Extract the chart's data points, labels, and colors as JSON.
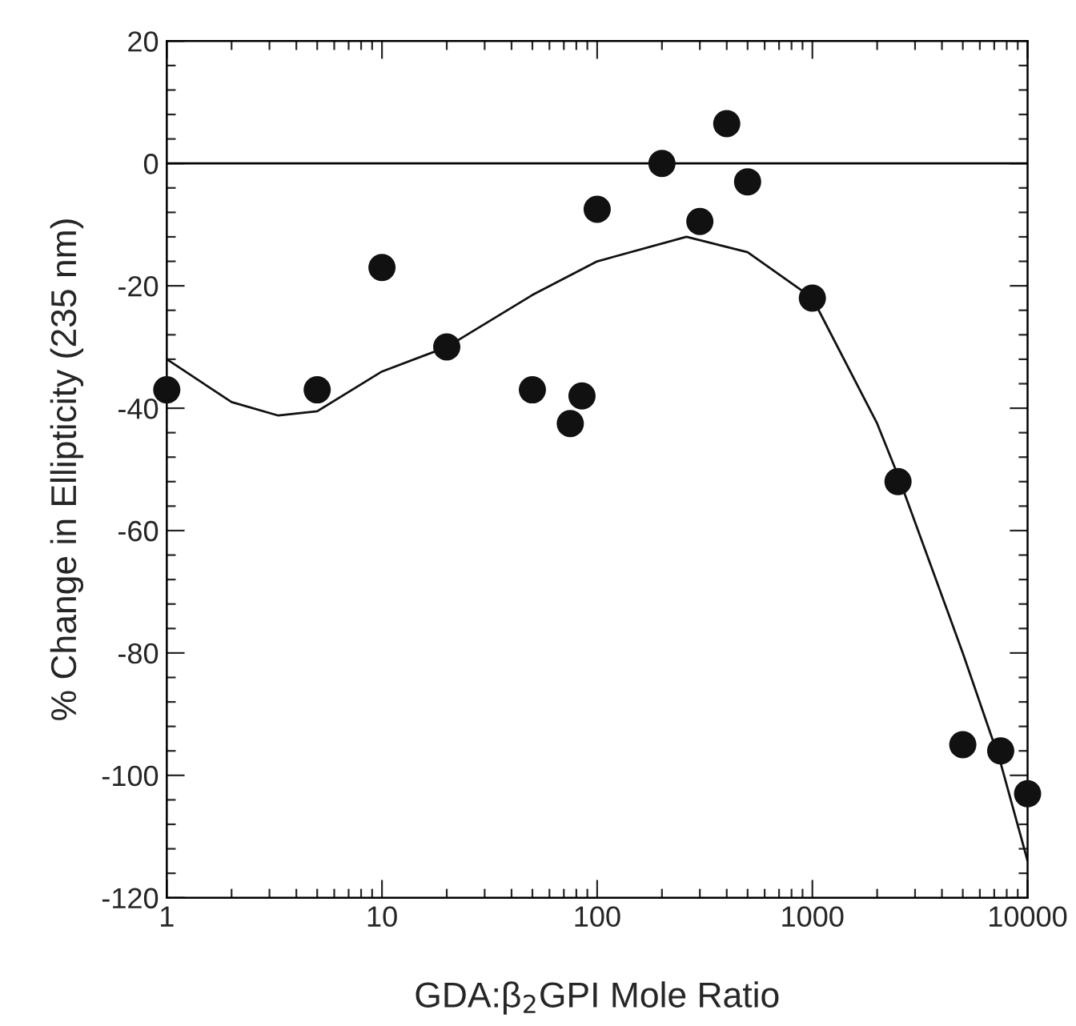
{
  "chart_data": {
    "type": "scatter",
    "xlabel": "GDA:β$_{2}$GPI Mole Ratio",
    "ylabel": "% Change in Ellipticity (235 nm)",
    "log": "x",
    "xlim": [
      1,
      10000
    ],
    "xticks": [
      1,
      10,
      100,
      1000,
      10000
    ],
    "ylim": [
      -120,
      20
    ],
    "yticks": [
      -120,
      -100,
      -80,
      -60,
      -40,
      -20,
      0,
      20
    ],
    "grid": false,
    "legend": false,
    "ref_lines": [
      {
        "axis": "y",
        "value": 0,
        "color": "#000000",
        "line_style": "solid"
      }
    ],
    "series": [
      {
        "color": "#111111",
        "marker": "circle",
        "x": [
          1,
          5,
          10,
          20,
          50,
          75,
          85,
          100,
          200,
          300,
          400,
          500,
          1000,
          2500,
          5000,
          7500,
          10000
        ],
        "values": [
          -37,
          -37,
          -17,
          -30,
          -37,
          -42.5,
          -38,
          -7.5,
          0,
          -9.5,
          6.5,
          -3,
          -22,
          -52,
          -95,
          -96,
          -103
        ]
      },
      {
        "type": "line",
        "color": "#111111",
        "marker": "none",
        "line_style": "solid",
        "x": [
          1,
          2,
          3.3,
          5,
          10,
          20,
          50,
          100,
          260,
          500,
          1000,
          2000,
          2500,
          5000,
          7500,
          10000
        ],
        "values": [
          -32,
          -39,
          -41.2,
          -40.5,
          -34,
          -30,
          -21.5,
          -16,
          -12,
          -14.5,
          -22,
          -42.5,
          -51,
          -80,
          -98,
          -114
        ]
      }
    ]
  }
}
